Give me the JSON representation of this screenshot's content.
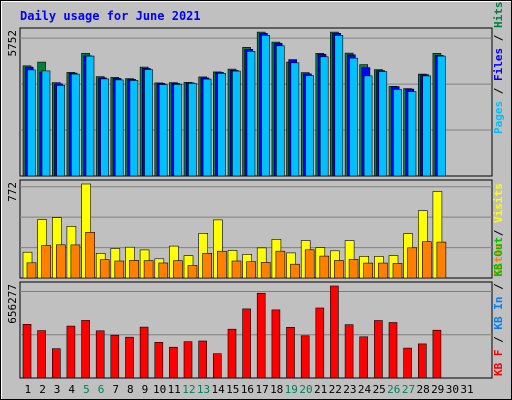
{
  "chart_data": [
    {
      "type": "bar",
      "title": "Daily usage for June 2021",
      "categories": [
        "1",
        "2",
        "3",
        "4",
        "5",
        "6",
        "7",
        "8",
        "9",
        "10",
        "11",
        "12",
        "13",
        "14",
        "15",
        "16",
        "17",
        "18",
        "19",
        "20",
        "21",
        "22",
        "23",
        "24",
        "25",
        "26",
        "27",
        "28",
        "29",
        "30",
        "31"
      ],
      "weekend_days": [
        "5",
        "6",
        "12",
        "13",
        "19",
        "20",
        "26",
        "27"
      ],
      "ymax_label": "5752",
      "ylim": [
        0,
        5752
      ],
      "ylabel_parts": [
        "Pages",
        "Files",
        "Hits"
      ],
      "series": [
        {
          "name": "Hits",
          "color": "#008040",
          "values": [
            4400,
            4550,
            3730,
            4140,
            4900,
            3970,
            3940,
            3890,
            4350,
            3720,
            3730,
            3740,
            3960,
            4160,
            4270,
            5140,
            5750,
            5350,
            4550,
            4130,
            4900,
            5750,
            4910,
            4450,
            4250,
            3580,
            3490,
            4070,
            4900,
            null,
            null
          ]
        },
        {
          "name": "Files",
          "color": "#0000ff",
          "values": [
            4350,
            4150,
            3680,
            4110,
            4800,
            3920,
            3900,
            3860,
            4300,
            3700,
            3700,
            3720,
            3920,
            4140,
            4220,
            5060,
            5700,
            5300,
            4650,
            4080,
            4860,
            5700,
            4840,
            4330,
            4210,
            3570,
            3470,
            4050,
            4820,
            null,
            null
          ]
        },
        {
          "name": "Pages",
          "color": "#00c0ff",
          "values": [
            4240,
            4200,
            3620,
            4070,
            4790,
            3880,
            3840,
            3820,
            4250,
            3650,
            3660,
            3700,
            3870,
            4100,
            4190,
            4980,
            5620,
            5200,
            4520,
            4010,
            4760,
            5620,
            4710,
            4000,
            4170,
            3460,
            3370,
            4000,
            4790,
            null,
            null
          ]
        }
      ]
    },
    {
      "type": "bar",
      "ymax_label": "772",
      "ylim": [
        0,
        772
      ],
      "ylabel_parts": [
        "Visits",
        "Sites"
      ],
      "series": [
        {
          "name": "Visits",
          "color": "#ffff00",
          "values": [
            212,
            480,
            495,
            425,
            772,
            203,
            242,
            253,
            231,
            158,
            262,
            183,
            367,
            477,
            226,
            195,
            247,
            317,
            206,
            307,
            250,
            223,
            307,
            178,
            177,
            184,
            364,
            553,
            710,
            null,
            null
          ]
        },
        {
          "name": "Sites",
          "color": "#ff8000",
          "values": [
            125,
            267,
            273,
            272,
            375,
            150,
            140,
            145,
            143,
            123,
            142,
            103,
            203,
            220,
            140,
            134,
            128,
            220,
            113,
            232,
            180,
            144,
            153,
            122,
            122,
            120,
            248,
            298,
            295,
            null,
            null
          ]
        }
      ]
    },
    {
      "type": "bar",
      "ymax_label": "656277",
      "ylim": [
        0,
        656277
      ],
      "ylabel_parts": [
        "KB F",
        "KB In",
        "KB Out"
      ],
      "series": [
        {
          "name": "KB F",
          "color": "#ff0000",
          "values": [
            383000,
            338000,
            209000,
            370000,
            411000,
            337000,
            305000,
            291000,
            363000,
            255000,
            220000,
            259000,
            264000,
            173000,
            348000,
            493000,
            605000,
            486000,
            362000,
            301000,
            499000,
            656277,
            380000,
            294000,
            410000,
            396000,
            213000,
            243000,
            341000,
            null,
            null
          ]
        }
      ]
    }
  ]
}
